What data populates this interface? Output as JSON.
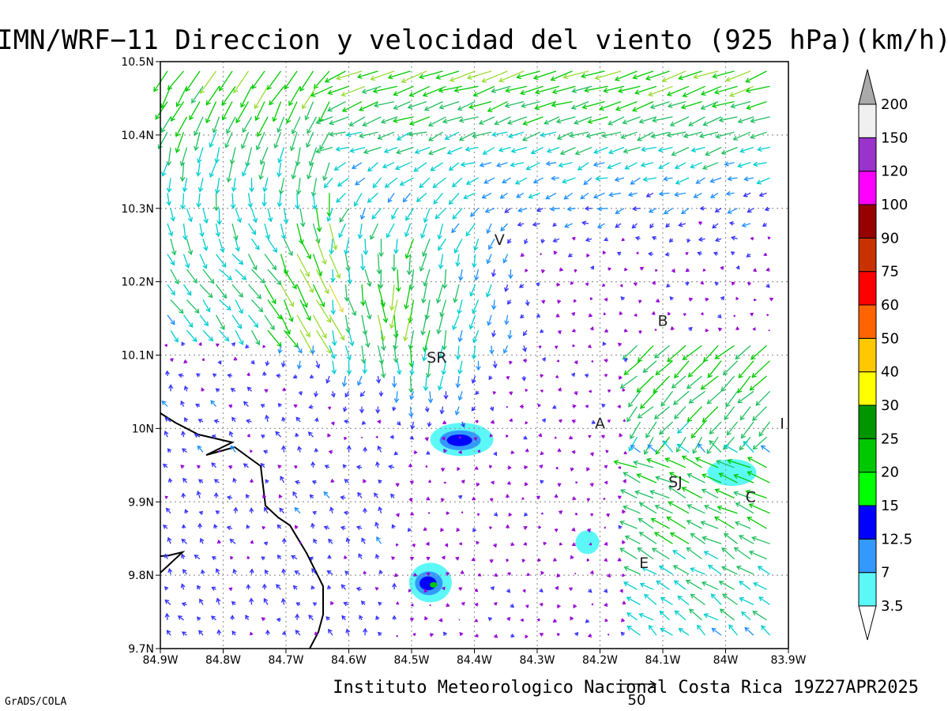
{
  "title": "IMN/WRF−11 Direccion y velocidad del viento (925 hPa)(km/h)",
  "footer": {
    "institution": "Instituto Meteorologico Nacional Costa Rica 19Z27APR2025",
    "software": "GrADS/COLA",
    "reference_vector_label": "50"
  },
  "map": {
    "lon_range": [
      -84.9,
      -83.9
    ],
    "lat_range": [
      9.7,
      10.5
    ],
    "x_tick_labels": [
      "84.9W",
      "84.8W",
      "84.7W",
      "84.6W",
      "84.5W",
      "84.4W",
      "84.3W",
      "84.2W",
      "84.1W",
      "84W",
      "83.9W"
    ],
    "y_tick_labels": [
      "10.5N",
      "10.4N",
      "10.3N",
      "10.2N",
      "10.1N",
      "10N",
      "9.9N",
      "9.8N",
      "9.7N"
    ],
    "grid": "dotted",
    "places": [
      {
        "label": "V",
        "lon": -84.36,
        "lat": 10.25
      },
      {
        "label": "SR",
        "lon": -84.46,
        "lat": 10.09
      },
      {
        "label": "B",
        "lon": -84.1,
        "lat": 10.14
      },
      {
        "label": "A",
        "lon": -84.2,
        "lat": 10.0
      },
      {
        "label": "I",
        "lon": -83.91,
        "lat": 10.0
      },
      {
        "label": "SJ",
        "lon": -84.08,
        "lat": 9.92
      },
      {
        "label": "C",
        "lon": -83.96,
        "lat": 9.9
      },
      {
        "label": "E",
        "lon": -84.13,
        "lat": 9.81
      }
    ],
    "shaded_areas": [
      {
        "lon": -84.42,
        "lat": 9.985,
        "max_class": "12.5"
      },
      {
        "lon": -83.99,
        "lat": 9.94,
        "max_class": "3.5"
      },
      {
        "lon": -84.22,
        "lat": 9.845,
        "max_class": "3.5"
      },
      {
        "lon": -84.47,
        "lat": 9.79,
        "max_class": "20"
      }
    ]
  },
  "colorbar": {
    "labels": [
      "3.5",
      "7",
      "12.5",
      "15",
      "20",
      "25",
      "30",
      "40",
      "50",
      "60",
      "75",
      "90",
      "100",
      "120",
      "150",
      "200"
    ],
    "colors": [
      "#ffffff",
      "#5cf8f8",
      "#3399ff",
      "#0000ff",
      "#00ff00",
      "#00c800",
      "#009600",
      "#ffff00",
      "#ffc800",
      "#ff6400",
      "#ff0000",
      "#c83200",
      "#960000",
      "#ff00ff",
      "#9933cc",
      "#f0f0f0",
      "#aaaaaa"
    ]
  }
}
